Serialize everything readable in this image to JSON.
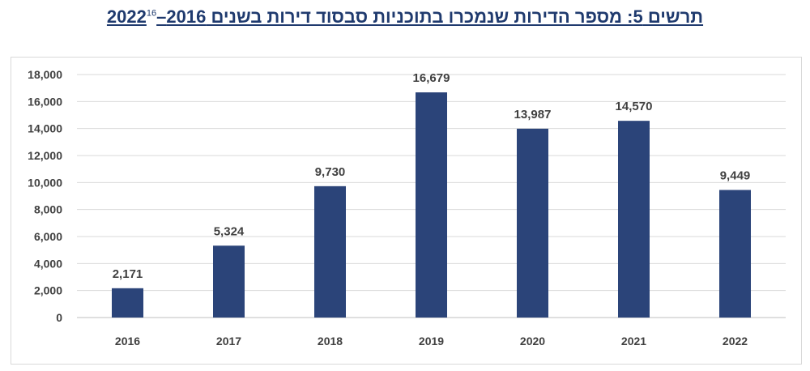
{
  "title": {
    "text": "תרשים 5: מספר הדירות שנמכרו בתוכניות סבסוד דירות בשנים 2016–2022",
    "footnote": "16"
  },
  "colors": {
    "bar": "#2b4479",
    "grid": "#d9d9d9",
    "title": "#1f3a6e"
  },
  "chart_data": {
    "type": "bar",
    "title": "תרשים 5: מספר הדירות שנמכרו בתוכניות סבסוד דירות בשנים 2016–2022",
    "categories": [
      "2016",
      "2017",
      "2018",
      "2019",
      "2020",
      "2021",
      "2022"
    ],
    "values": [
      2171,
      5324,
      9730,
      16679,
      13987,
      14570,
      9449
    ],
    "data_labels": [
      "2,171",
      "5,324",
      "9,730",
      "16,679",
      "13,987",
      "14,570",
      "9,449"
    ],
    "y_ticks": [
      "0",
      "2,000",
      "4,000",
      "6,000",
      "8,000",
      "10,000",
      "12,000",
      "14,000",
      "16,000",
      "18,000"
    ],
    "ylim": [
      0,
      18000
    ],
    "xlabel": "",
    "ylabel": "",
    "grid": true,
    "legend": "none"
  }
}
